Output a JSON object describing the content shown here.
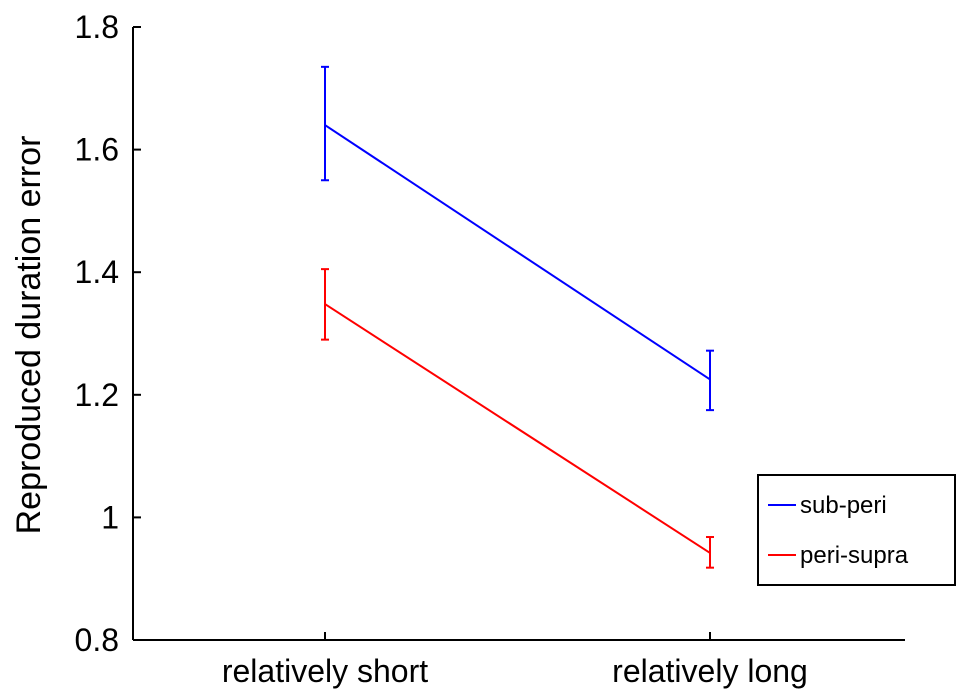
{
  "chart_data": {
    "type": "line",
    "title": "",
    "xlabel": "",
    "ylabel": "Reproduced duration error",
    "categories": [
      "relatively short",
      "relatively long"
    ],
    "ylim": [
      0.8,
      1.8
    ],
    "yticks": [
      0.8,
      1,
      1.2,
      1.4,
      1.6,
      1.8
    ],
    "ytick_labels": [
      "0.8",
      "1",
      "1.2",
      "1.4",
      "1.6",
      "1.8"
    ],
    "grid": false,
    "legend_position": "bottom-right",
    "series": [
      {
        "name": "sub-peri",
        "color": "#0000ff",
        "values": [
          1.64,
          1.225
        ],
        "error_low": [
          1.55,
          1.175
        ],
        "error_high": [
          1.735,
          1.272
        ]
      },
      {
        "name": "peri-supra",
        "color": "#ff0000",
        "values": [
          1.348,
          0.942
        ],
        "error_low": [
          1.29,
          0.918
        ],
        "error_high": [
          1.405,
          0.968
        ]
      }
    ]
  }
}
